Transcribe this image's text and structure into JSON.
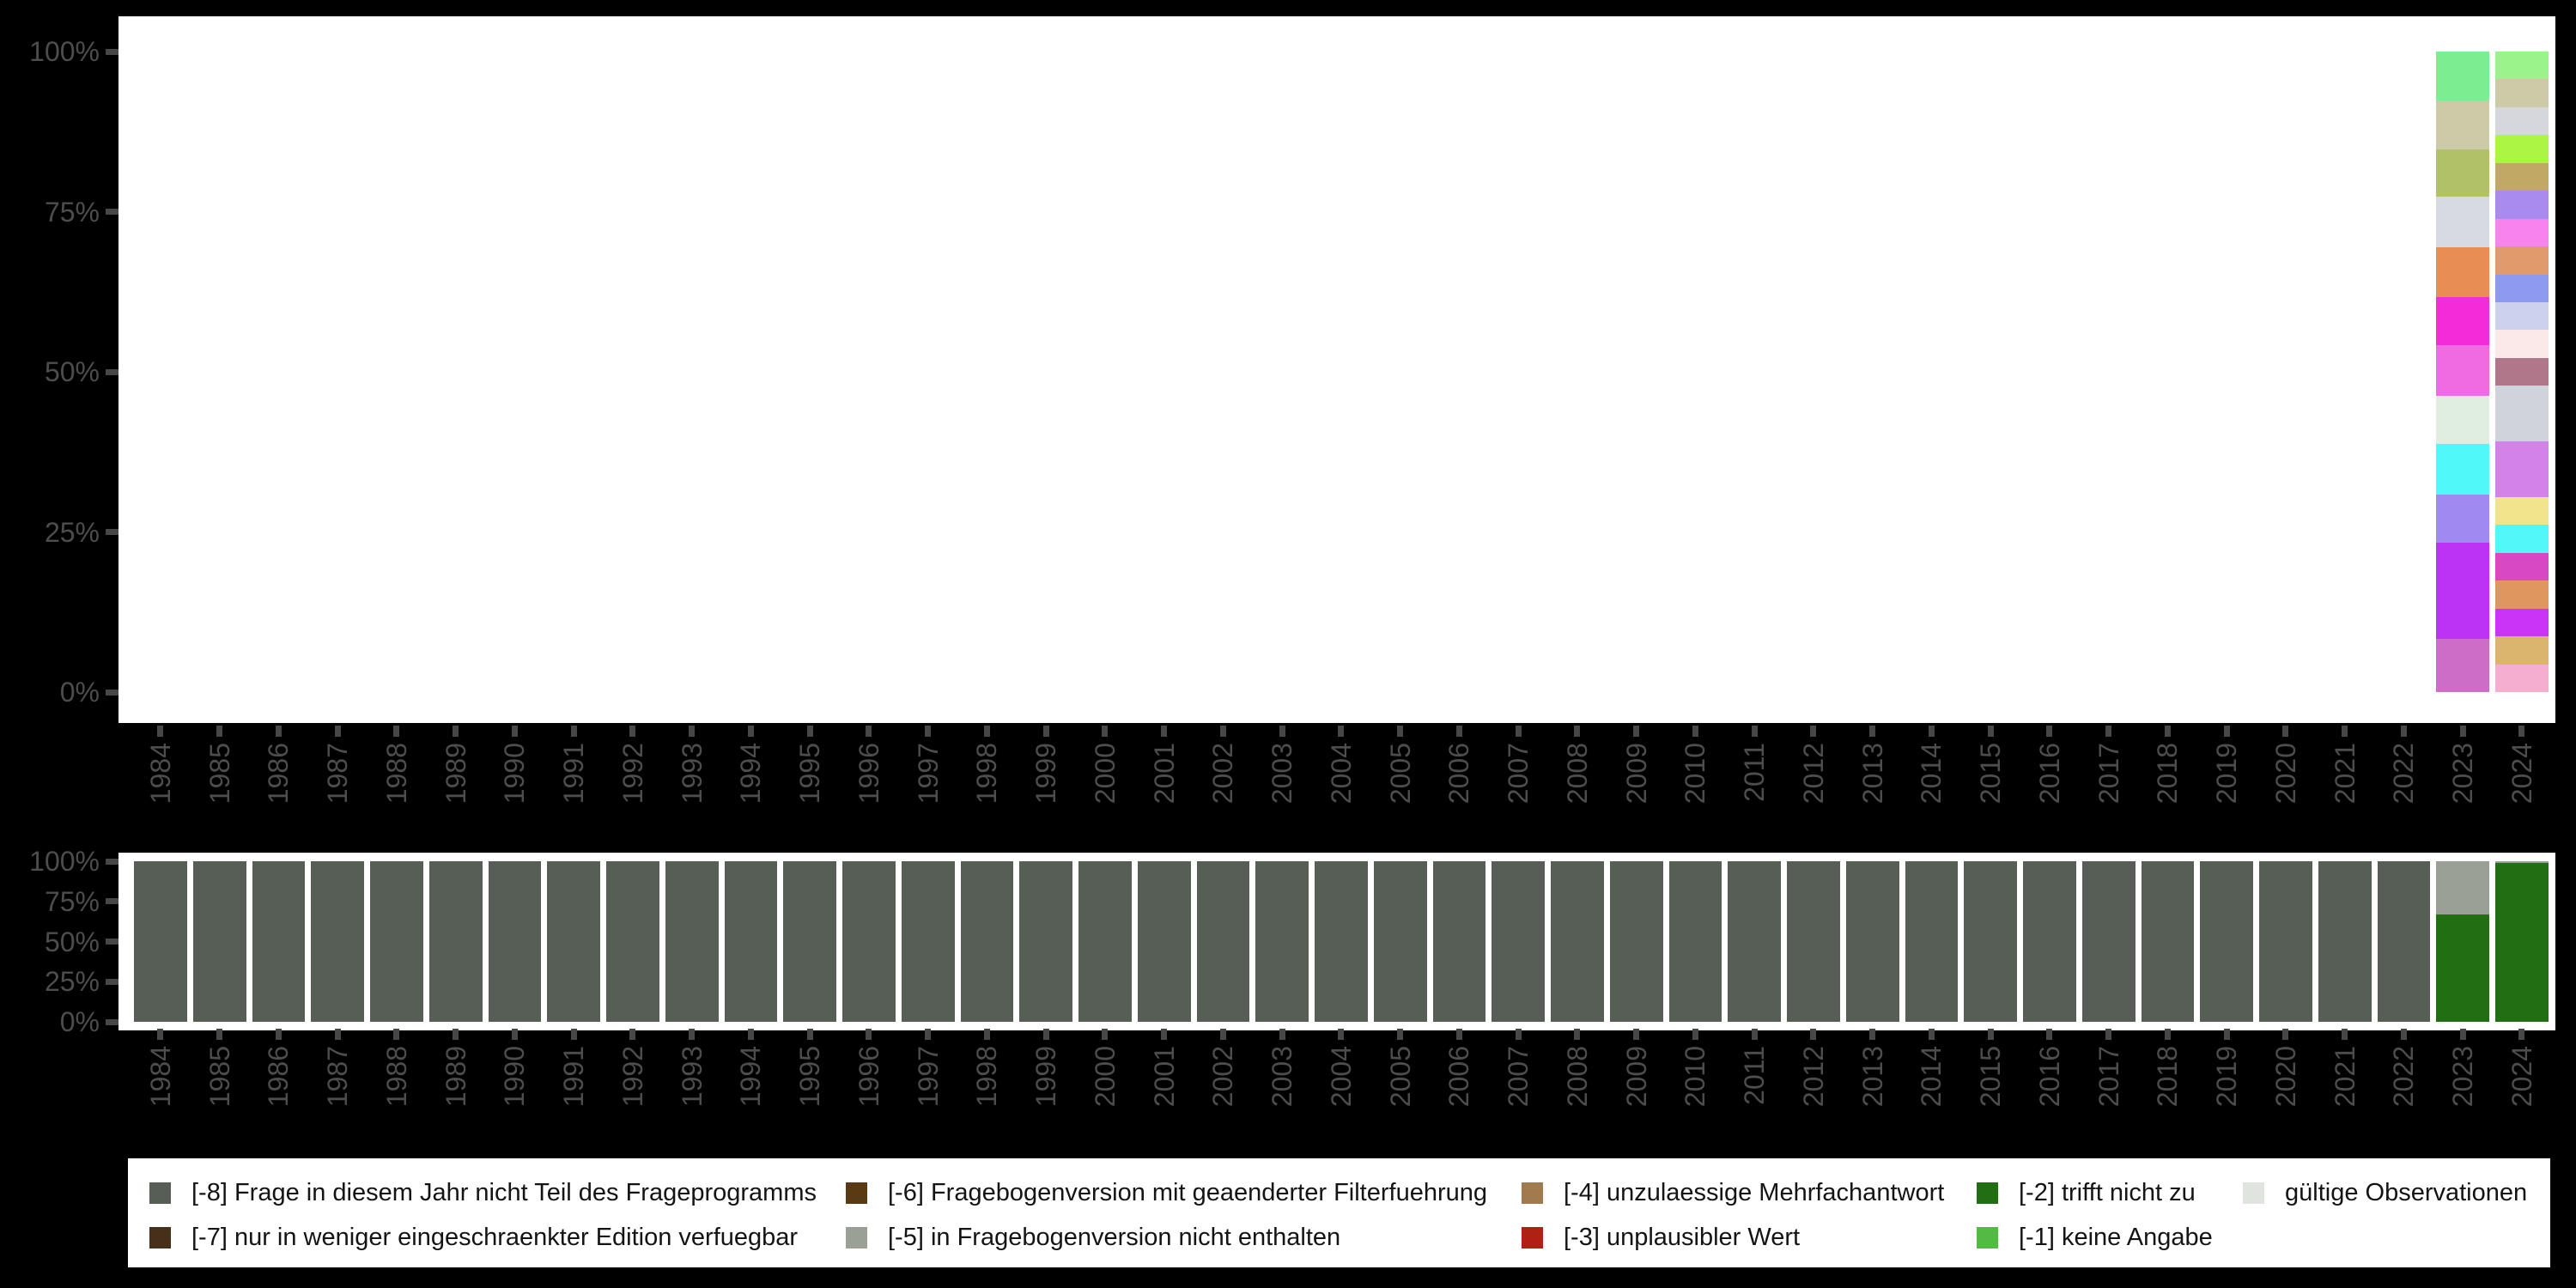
{
  "colors": {
    "background": "#000000",
    "plot_background": "#ffffff",
    "axis_text": "#4d4d4d",
    "axis_tick": "#474747",
    "legend_background": "#ffffff",
    "legend_text": "#141414"
  },
  "y_ticks_top_to_bottom": [
    "100%",
    "75%",
    "50%",
    "25%",
    "0%"
  ],
  "years": [
    "1984",
    "1985",
    "1986",
    "1987",
    "1988",
    "1989",
    "1990",
    "1991",
    "1992",
    "1993",
    "1994",
    "1995",
    "1996",
    "1997",
    "1998",
    "1999",
    "2000",
    "2001",
    "2002",
    "2003",
    "2004",
    "2005",
    "2006",
    "2007",
    "2008",
    "2009",
    "2010",
    "2011",
    "2012",
    "2013",
    "2014",
    "2015",
    "2016",
    "2017",
    "2018",
    "2019",
    "2020",
    "2021",
    "2022",
    "2023",
    "2024"
  ],
  "legend": {
    "columns": [
      {
        "items": [
          {
            "label": "[-8] Frage in diesem Jahr nicht Teil des Frageprogramms",
            "color": "#565E56"
          },
          {
            "label": "[-7] nur in weniger eingeschraenkter Edition verfuegbar",
            "color": "#47301A"
          }
        ]
      },
      {
        "items": [
          {
            "label": "[-6] Fragebogenversion mit geaenderter Filterfuehrung",
            "color": "#5A3A14"
          },
          {
            "label": "[-5] in Fragebogenversion nicht enthalten",
            "color": "#9AA096"
          }
        ]
      },
      {
        "items": [
          {
            "label": "[-4] unzulaessige Mehrfachantwort",
            "color": "#A17A50"
          },
          {
            "label": "[-3] unplausibler Wert",
            "color": "#B02014"
          }
        ]
      },
      {
        "items": [
          {
            "label": "[-2] trifft nicht zu",
            "color": "#226E12"
          },
          {
            "label": "[-1] keine Angabe",
            "color": "#53BA44"
          }
        ]
      },
      {
        "items": [
          {
            "label": "gültige Observationen",
            "color": "#E0E4DE"
          }
        ]
      }
    ]
  },
  "chart_data": [
    {
      "id": "category-distribution-by-year",
      "type": "bar",
      "stacked": true,
      "ylim": [
        0,
        100
      ],
      "yticks": [
        "0%",
        "25%",
        "50%",
        "75%",
        "100%"
      ],
      "categories": [
        "1984",
        "1985",
        "1986",
        "1987",
        "1988",
        "1989",
        "1990",
        "1991",
        "1992",
        "1993",
        "1994",
        "1995",
        "1996",
        "1997",
        "1998",
        "1999",
        "2000",
        "2001",
        "2002",
        "2003",
        "2004",
        "2005",
        "2006",
        "2007",
        "2008",
        "2009",
        "2010",
        "2011",
        "2012",
        "2013",
        "2014",
        "2015",
        "2016",
        "2017",
        "2018",
        "2019",
        "2020",
        "2021",
        "2022",
        "2023",
        "2024"
      ],
      "note": "years 1984-2022 show no bar (empty plot); values are percent of bar, listed top to bottom",
      "bars": {
        "2023": [
          {
            "color": "#7BEE92",
            "pct": 7.7
          },
          {
            "color": "#CDCBA7",
            "pct": 7.6
          },
          {
            "color": "#B1C167",
            "pct": 7.4
          },
          {
            "color": "#D8DAE2",
            "pct": 7.8
          },
          {
            "color": "#E88E55",
            "pct": 7.9
          },
          {
            "color": "#F32CD9",
            "pct": 7.5
          },
          {
            "color": "#F06AE2",
            "pct": 7.8
          },
          {
            "color": "#E0EDE1",
            "pct": 7.6
          },
          {
            "color": "#50F8F9",
            "pct": 7.8
          },
          {
            "color": "#A089F1",
            "pct": 7.6
          },
          {
            "color": "#BC33F6",
            "pct": 15.0
          },
          {
            "color": "#CC6DC7",
            "pct": 8.3
          }
        ],
        "2024": [
          {
            "color": "#9BF48B",
            "pct": 4.35
          },
          {
            "color": "#CDCBA7",
            "pct": 4.35
          },
          {
            "color": "#D5D7DD",
            "pct": 4.35
          },
          {
            "color": "#ACF542",
            "pct": 4.35
          },
          {
            "color": "#C1A865",
            "pct": 4.35
          },
          {
            "color": "#A98BEF",
            "pct": 4.35
          },
          {
            "color": "#F783EE",
            "pct": 4.35
          },
          {
            "color": "#E09A6C",
            "pct": 4.35
          },
          {
            "color": "#8C9BEF",
            "pct": 4.35
          },
          {
            "color": "#CCD1EE",
            "pct": 4.35
          },
          {
            "color": "#FAE9E8",
            "pct": 4.35
          },
          {
            "color": "#B0778A",
            "pct": 4.35
          },
          {
            "color": "#D0D3D9",
            "pct": 8.7
          },
          {
            "color": "#D183EA",
            "pct": 8.7
          },
          {
            "color": "#F0E48D",
            "pct": 4.35
          },
          {
            "color": "#52F8F9",
            "pct": 4.35
          },
          {
            "color": "#D948C4",
            "pct": 4.35
          },
          {
            "color": "#E0965F",
            "pct": 4.35
          },
          {
            "color": "#C835F7",
            "pct": 4.35
          },
          {
            "color": "#DBB56D",
            "pct": 4.35
          },
          {
            "color": "#F5ADD0",
            "pct": 4.35
          }
        ]
      }
    },
    {
      "id": "missing-code-share-by-year",
      "type": "bar",
      "stacked": true,
      "ylim": [
        0,
        100
      ],
      "yticks": [
        "0%",
        "25%",
        "50%",
        "75%",
        "100%"
      ],
      "categories": [
        "1984",
        "1985",
        "1986",
        "1987",
        "1988",
        "1989",
        "1990",
        "1991",
        "1992",
        "1993",
        "1994",
        "1995",
        "1996",
        "1997",
        "1998",
        "1999",
        "2000",
        "2001",
        "2002",
        "2003",
        "2004",
        "2005",
        "2006",
        "2007",
        "2008",
        "2009",
        "2010",
        "2011",
        "2012",
        "2013",
        "2014",
        "2015",
        "2016",
        "2017",
        "2018",
        "2019",
        "2020",
        "2021",
        "2022",
        "2023",
        "2024"
      ],
      "note": "segments listed top to bottom; default applies to 1984-2022",
      "default_segments": [
        {
          "label": "[-8] Frage in diesem Jahr nicht Teil des Frageprogramms",
          "color": "#565E56",
          "pct": 100
        }
      ],
      "overrides": {
        "2023": [
          {
            "label": "[-5] in Fragebogenversion nicht enthalten",
            "color": "#9AA096",
            "pct": 33
          },
          {
            "label": "[-2] trifft nicht zu",
            "color": "#226E12",
            "pct": 67
          }
        ],
        "2024": [
          {
            "label": "[-5] in Fragebogenversion nicht enthalten",
            "color": "#9AA096",
            "pct": 1
          },
          {
            "label": "[-2] trifft nicht zu",
            "color": "#226E12",
            "pct": 99
          }
        ]
      }
    }
  ]
}
